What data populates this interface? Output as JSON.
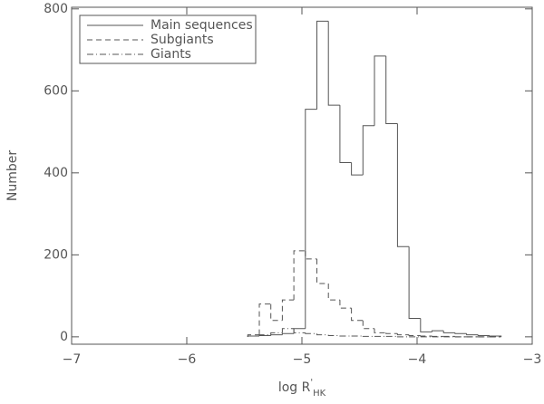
{
  "chart_data": {
    "type": "histogram",
    "xlabel": [
      "log R",
      "'",
      "HK"
    ],
    "ylabel": "Number",
    "bins": [
      -5.47,
      -5.37,
      -5.27,
      -5.17,
      -5.07,
      -4.97,
      -4.87,
      -4.77,
      -4.67,
      -4.57,
      -4.47,
      -4.37,
      -4.27,
      -4.17,
      -4.07,
      -3.97,
      -3.87,
      -3.77,
      -3.67,
      -3.57,
      -3.47,
      -3.37,
      -3.27
    ],
    "series": [
      {
        "name": "Main sequences",
        "color": "#555555",
        "dash": "solid",
        "values": [
          2,
          3,
          5,
          8,
          20,
          555,
          770,
          565,
          425,
          395,
          515,
          685,
          520,
          220,
          45,
          12,
          15,
          10,
          8,
          5,
          3,
          2
        ]
      },
      {
        "name": "Subgiants",
        "color": "#555555",
        "dash": "dashed",
        "values": [
          5,
          80,
          40,
          90,
          210,
          190,
          130,
          90,
          70,
          40,
          20,
          10,
          8,
          5,
          3,
          2,
          1,
          1,
          0,
          0,
          0,
          0
        ]
      },
      {
        "name": "Giants",
        "color": "#555555",
        "dash": "dashdot",
        "values": [
          2,
          5,
          10,
          20,
          10,
          8,
          5,
          3,
          2,
          2,
          1,
          1,
          1,
          0,
          0,
          0,
          0,
          0,
          0,
          0,
          0,
          0
        ]
      }
    ],
    "xlim": [
      -7,
      -3
    ],
    "ylim": [
      -18,
      804
    ],
    "xticks": [
      {
        "value": -7,
        "label": "−7"
      },
      {
        "value": -6,
        "label": "−6"
      },
      {
        "value": -5,
        "label": "−5"
      },
      {
        "value": -4,
        "label": "−4"
      },
      {
        "value": -3,
        "label": "−3"
      }
    ],
    "yticks": [
      0,
      200,
      400,
      600,
      800
    ],
    "legend": "upper left"
  }
}
